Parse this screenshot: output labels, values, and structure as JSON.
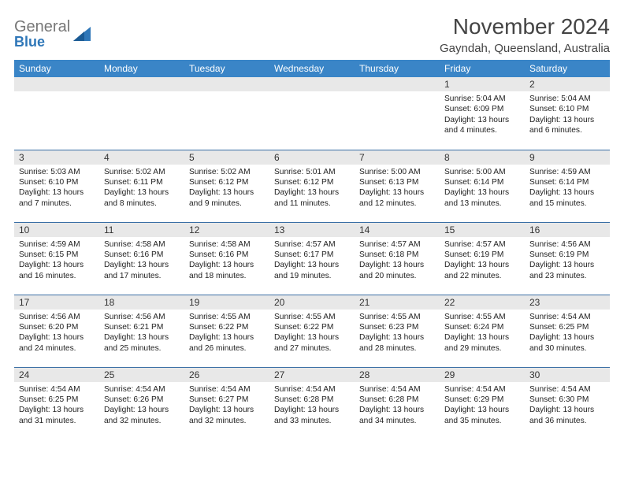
{
  "logo": {
    "word1": "General",
    "word2": "Blue"
  },
  "title": "November 2024",
  "location": "Gayndah, Queensland, Australia",
  "colors": {
    "header_bg": "#3a85c7",
    "header_text": "#ffffff",
    "daybar_bg": "#e8e8e8",
    "rule": "#3a6fa5",
    "logo_gray": "#777777",
    "logo_blue": "#2f77b8",
    "text": "#222222"
  },
  "weekdays": [
    "Sunday",
    "Monday",
    "Tuesday",
    "Wednesday",
    "Thursday",
    "Friday",
    "Saturday"
  ],
  "weeks": [
    [
      {
        "n": "",
        "empty": true
      },
      {
        "n": "",
        "empty": true
      },
      {
        "n": "",
        "empty": true
      },
      {
        "n": "",
        "empty": true
      },
      {
        "n": "",
        "empty": true
      },
      {
        "n": "1",
        "sr": "Sunrise: 5:04 AM",
        "ss": "Sunset: 6:09 PM",
        "d1": "Daylight: 13 hours",
        "d2": "and 4 minutes."
      },
      {
        "n": "2",
        "sr": "Sunrise: 5:04 AM",
        "ss": "Sunset: 6:10 PM",
        "d1": "Daylight: 13 hours",
        "d2": "and 6 minutes."
      }
    ],
    [
      {
        "n": "3",
        "sr": "Sunrise: 5:03 AM",
        "ss": "Sunset: 6:10 PM",
        "d1": "Daylight: 13 hours",
        "d2": "and 7 minutes."
      },
      {
        "n": "4",
        "sr": "Sunrise: 5:02 AM",
        "ss": "Sunset: 6:11 PM",
        "d1": "Daylight: 13 hours",
        "d2": "and 8 minutes."
      },
      {
        "n": "5",
        "sr": "Sunrise: 5:02 AM",
        "ss": "Sunset: 6:12 PM",
        "d1": "Daylight: 13 hours",
        "d2": "and 9 minutes."
      },
      {
        "n": "6",
        "sr": "Sunrise: 5:01 AM",
        "ss": "Sunset: 6:12 PM",
        "d1": "Daylight: 13 hours",
        "d2": "and 11 minutes."
      },
      {
        "n": "7",
        "sr": "Sunrise: 5:00 AM",
        "ss": "Sunset: 6:13 PM",
        "d1": "Daylight: 13 hours",
        "d2": "and 12 minutes."
      },
      {
        "n": "8",
        "sr": "Sunrise: 5:00 AM",
        "ss": "Sunset: 6:14 PM",
        "d1": "Daylight: 13 hours",
        "d2": "and 13 minutes."
      },
      {
        "n": "9",
        "sr": "Sunrise: 4:59 AM",
        "ss": "Sunset: 6:14 PM",
        "d1": "Daylight: 13 hours",
        "d2": "and 15 minutes."
      }
    ],
    [
      {
        "n": "10",
        "sr": "Sunrise: 4:59 AM",
        "ss": "Sunset: 6:15 PM",
        "d1": "Daylight: 13 hours",
        "d2": "and 16 minutes."
      },
      {
        "n": "11",
        "sr": "Sunrise: 4:58 AM",
        "ss": "Sunset: 6:16 PM",
        "d1": "Daylight: 13 hours",
        "d2": "and 17 minutes."
      },
      {
        "n": "12",
        "sr": "Sunrise: 4:58 AM",
        "ss": "Sunset: 6:16 PM",
        "d1": "Daylight: 13 hours",
        "d2": "and 18 minutes."
      },
      {
        "n": "13",
        "sr": "Sunrise: 4:57 AM",
        "ss": "Sunset: 6:17 PM",
        "d1": "Daylight: 13 hours",
        "d2": "and 19 minutes."
      },
      {
        "n": "14",
        "sr": "Sunrise: 4:57 AM",
        "ss": "Sunset: 6:18 PM",
        "d1": "Daylight: 13 hours",
        "d2": "and 20 minutes."
      },
      {
        "n": "15",
        "sr": "Sunrise: 4:57 AM",
        "ss": "Sunset: 6:19 PM",
        "d1": "Daylight: 13 hours",
        "d2": "and 22 minutes."
      },
      {
        "n": "16",
        "sr": "Sunrise: 4:56 AM",
        "ss": "Sunset: 6:19 PM",
        "d1": "Daylight: 13 hours",
        "d2": "and 23 minutes."
      }
    ],
    [
      {
        "n": "17",
        "sr": "Sunrise: 4:56 AM",
        "ss": "Sunset: 6:20 PM",
        "d1": "Daylight: 13 hours",
        "d2": "and 24 minutes."
      },
      {
        "n": "18",
        "sr": "Sunrise: 4:56 AM",
        "ss": "Sunset: 6:21 PM",
        "d1": "Daylight: 13 hours",
        "d2": "and 25 minutes."
      },
      {
        "n": "19",
        "sr": "Sunrise: 4:55 AM",
        "ss": "Sunset: 6:22 PM",
        "d1": "Daylight: 13 hours",
        "d2": "and 26 minutes."
      },
      {
        "n": "20",
        "sr": "Sunrise: 4:55 AM",
        "ss": "Sunset: 6:22 PM",
        "d1": "Daylight: 13 hours",
        "d2": "and 27 minutes."
      },
      {
        "n": "21",
        "sr": "Sunrise: 4:55 AM",
        "ss": "Sunset: 6:23 PM",
        "d1": "Daylight: 13 hours",
        "d2": "and 28 minutes."
      },
      {
        "n": "22",
        "sr": "Sunrise: 4:55 AM",
        "ss": "Sunset: 6:24 PM",
        "d1": "Daylight: 13 hours",
        "d2": "and 29 minutes."
      },
      {
        "n": "23",
        "sr": "Sunrise: 4:54 AM",
        "ss": "Sunset: 6:25 PM",
        "d1": "Daylight: 13 hours",
        "d2": "and 30 minutes."
      }
    ],
    [
      {
        "n": "24",
        "sr": "Sunrise: 4:54 AM",
        "ss": "Sunset: 6:25 PM",
        "d1": "Daylight: 13 hours",
        "d2": "and 31 minutes."
      },
      {
        "n": "25",
        "sr": "Sunrise: 4:54 AM",
        "ss": "Sunset: 6:26 PM",
        "d1": "Daylight: 13 hours",
        "d2": "and 32 minutes."
      },
      {
        "n": "26",
        "sr": "Sunrise: 4:54 AM",
        "ss": "Sunset: 6:27 PM",
        "d1": "Daylight: 13 hours",
        "d2": "and 32 minutes."
      },
      {
        "n": "27",
        "sr": "Sunrise: 4:54 AM",
        "ss": "Sunset: 6:28 PM",
        "d1": "Daylight: 13 hours",
        "d2": "and 33 minutes."
      },
      {
        "n": "28",
        "sr": "Sunrise: 4:54 AM",
        "ss": "Sunset: 6:28 PM",
        "d1": "Daylight: 13 hours",
        "d2": "and 34 minutes."
      },
      {
        "n": "29",
        "sr": "Sunrise: 4:54 AM",
        "ss": "Sunset: 6:29 PM",
        "d1": "Daylight: 13 hours",
        "d2": "and 35 minutes."
      },
      {
        "n": "30",
        "sr": "Sunrise: 4:54 AM",
        "ss": "Sunset: 6:30 PM",
        "d1": "Daylight: 13 hours",
        "d2": "and 36 minutes."
      }
    ]
  ]
}
